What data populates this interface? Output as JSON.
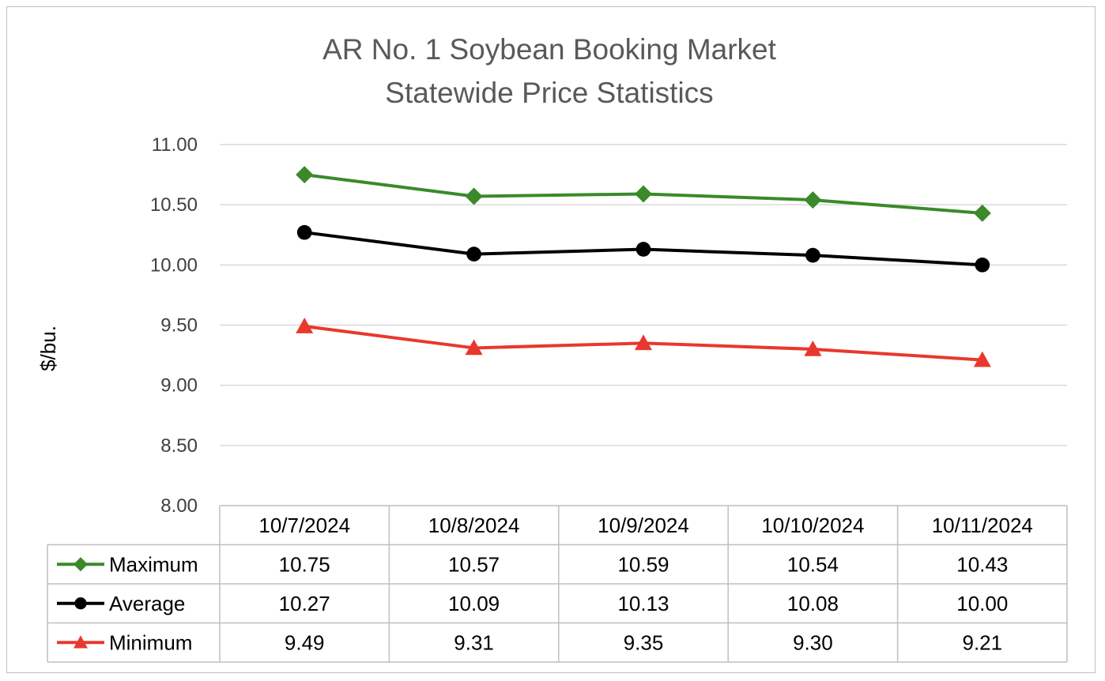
{
  "chart_data": {
    "type": "line",
    "title": [
      "AR No. 1 Soybean Booking Market",
      "Statewide Price Statistics"
    ],
    "ylabel": "$/bu.",
    "ylim": [
      8.0,
      11.0
    ],
    "yticks": [
      "11.00",
      "10.50",
      "10.00",
      "9.50",
      "9.00",
      "8.50",
      "8.00"
    ],
    "categories": [
      "10/7/2024",
      "10/8/2024",
      "10/9/2024",
      "10/10/2024",
      "10/11/2024"
    ],
    "grid": true,
    "legend": "data table below chart",
    "series": [
      {
        "name": "Maximum",
        "color": "#3a8a2a",
        "marker": "diamond",
        "values": [
          10.75,
          10.57,
          10.59,
          10.54,
          10.43
        ],
        "labels": [
          "10.75",
          "10.57",
          "10.59",
          "10.54",
          "10.43"
        ]
      },
      {
        "name": "Average",
        "color": "#000000",
        "marker": "circle",
        "values": [
          10.27,
          10.09,
          10.13,
          10.08,
          10.0
        ],
        "labels": [
          "10.27",
          "10.09",
          "10.13",
          "10.08",
          "10.00"
        ]
      },
      {
        "name": "Minimum",
        "color": "#e8382d",
        "marker": "triangle",
        "values": [
          9.49,
          9.31,
          9.35,
          9.3,
          9.21
        ],
        "labels": [
          "9.49",
          "9.31",
          "9.35",
          "9.30",
          "9.21"
        ]
      }
    ]
  }
}
